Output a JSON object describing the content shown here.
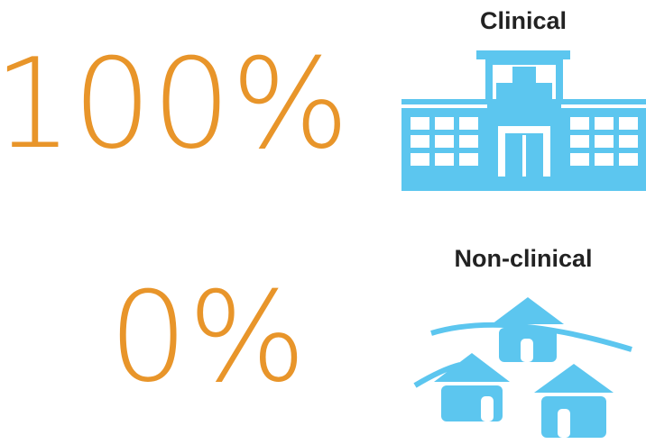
{
  "rows": [
    {
      "percent": "100%",
      "label": "Clinical"
    },
    {
      "percent": "0%",
      "label": "Non-clinical"
    }
  ]
}
